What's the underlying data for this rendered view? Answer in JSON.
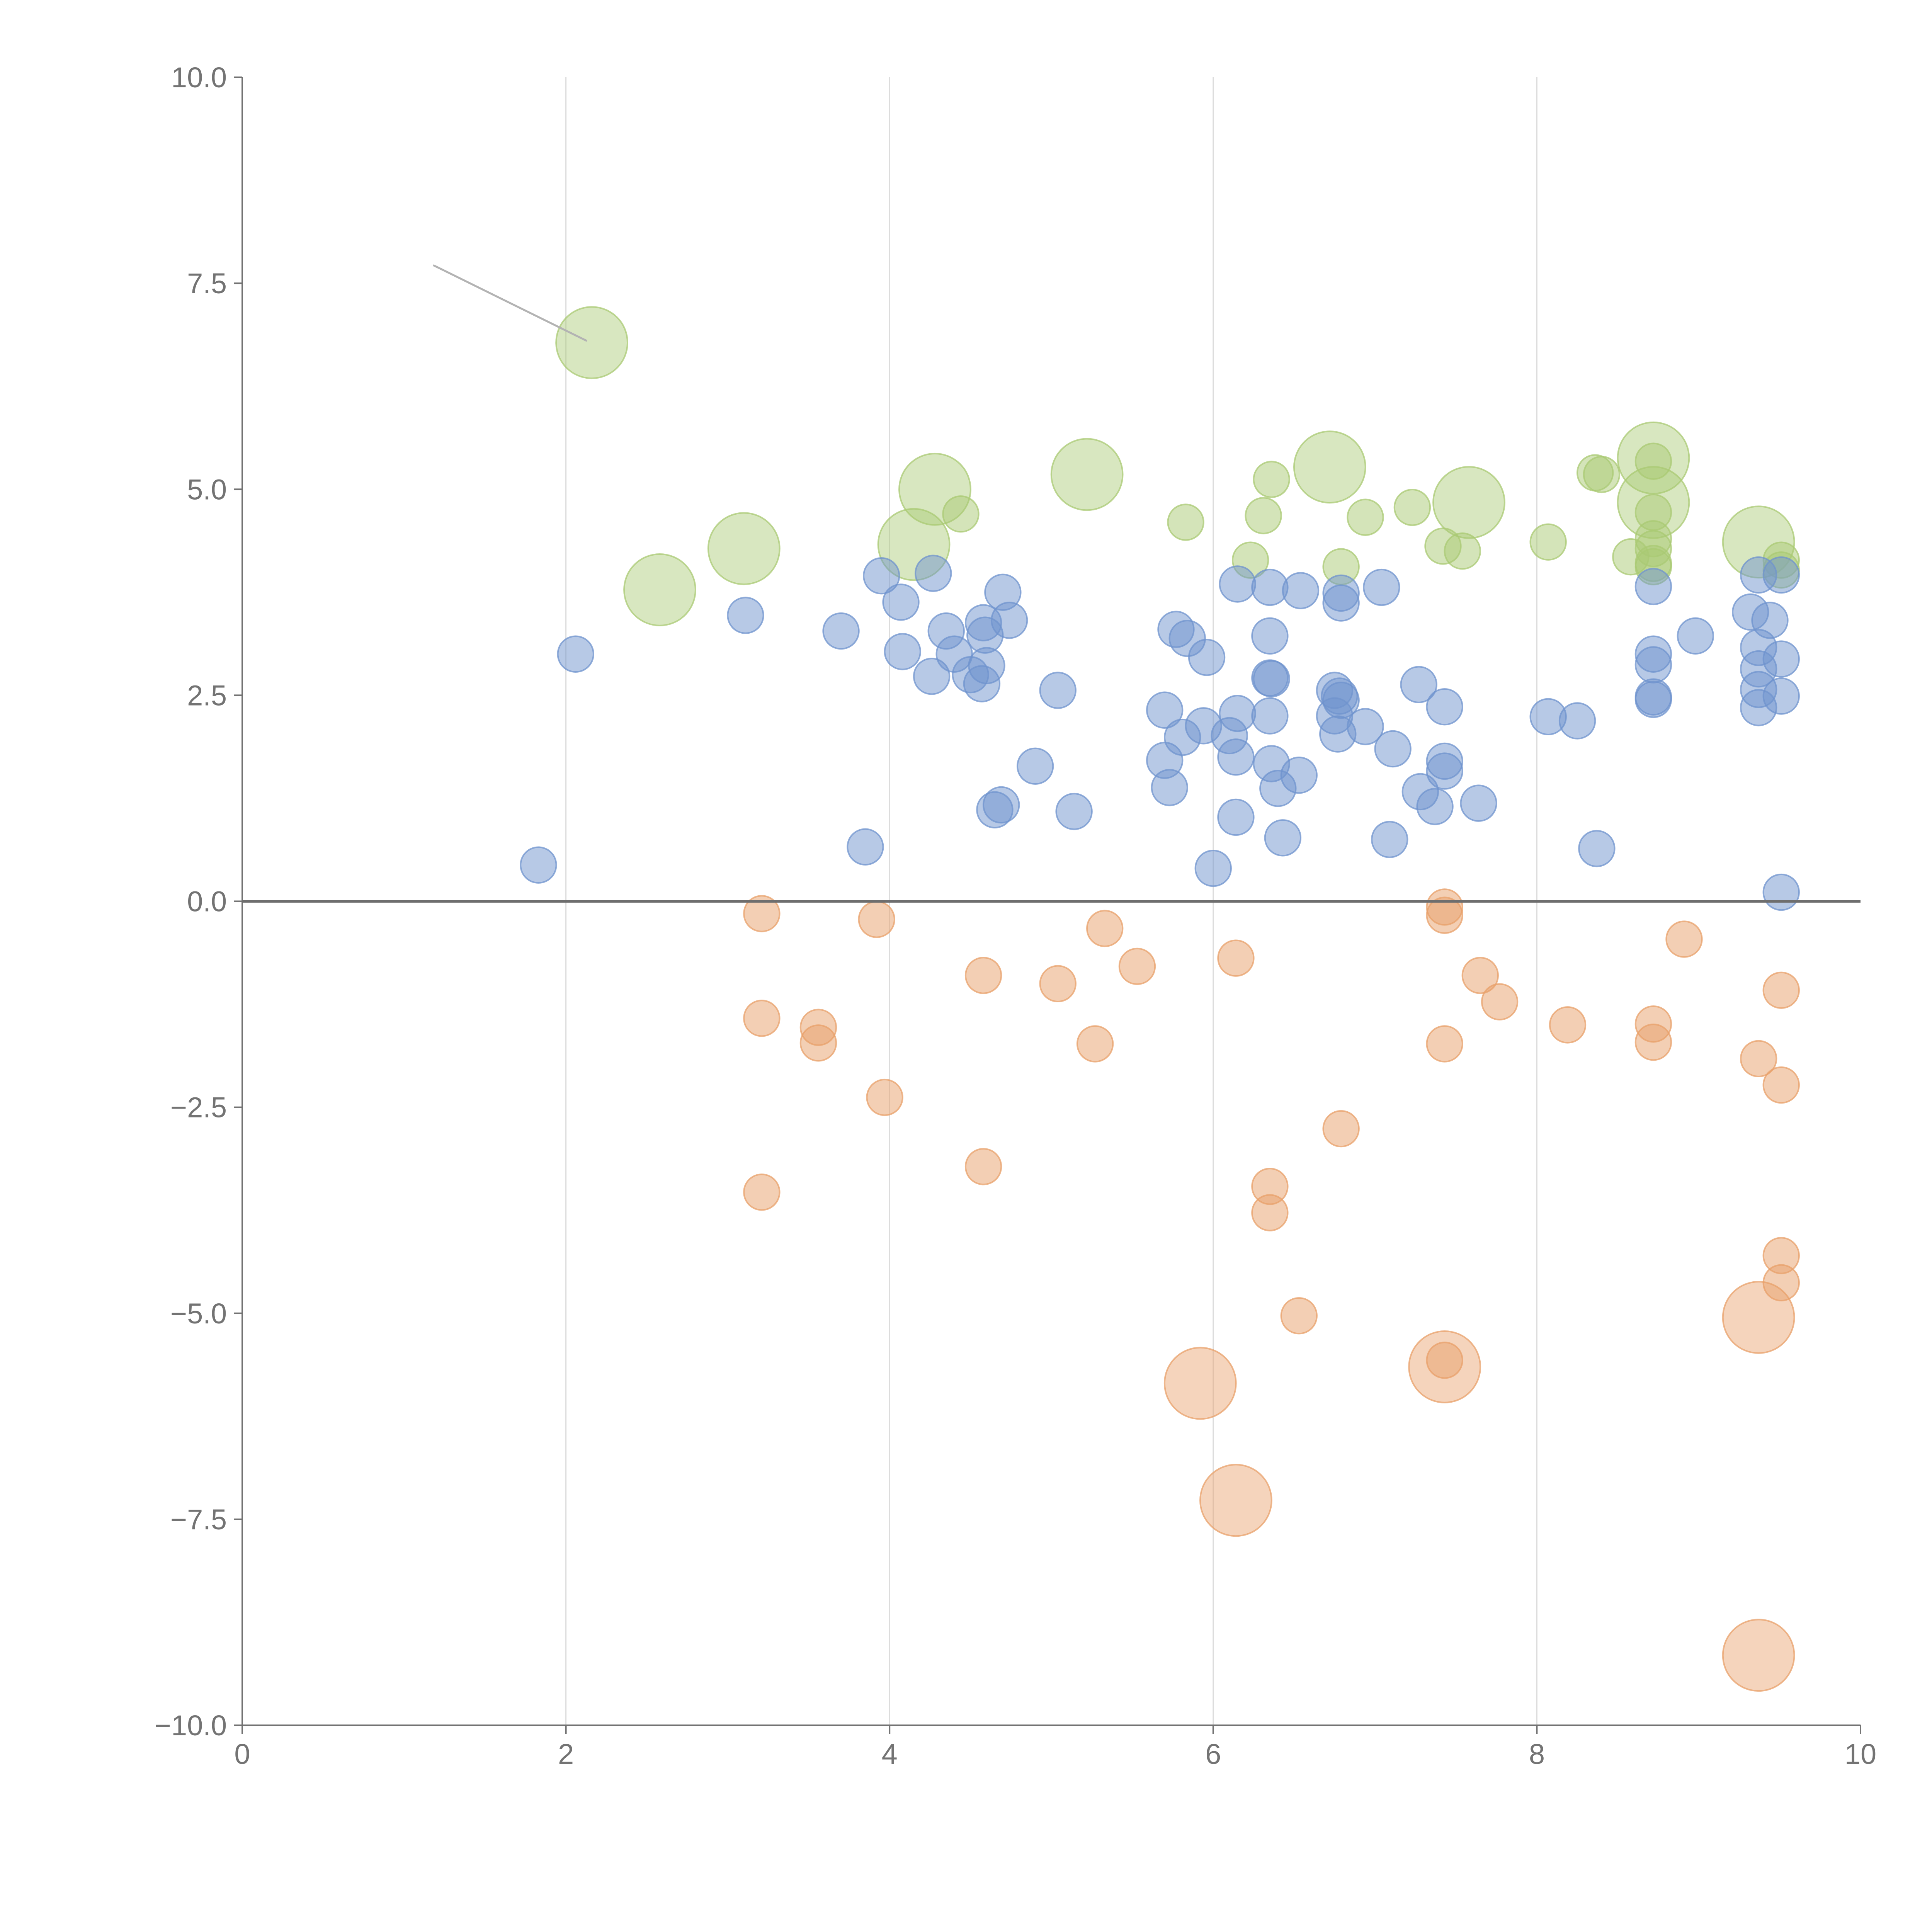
{
  "chart_data": {
    "type": "scatter",
    "subtype": "bubble",
    "title": "",
    "xlabel": "",
    "ylabel": "",
    "xlim": [
      0,
      10
    ],
    "ylim": [
      -10,
      10
    ],
    "x_ticks": [
      "0",
      "2",
      "4",
      "6",
      "8",
      "10"
    ],
    "y_ticks": [
      "−10.0",
      "−7.5",
      "−5.0",
      "−2.5",
      "0.0",
      "2.5",
      "5.0",
      "7.5",
      "10.0"
    ],
    "grid": "vertical",
    "zero_line": true,
    "legend": "none",
    "colors": {
      "green": "#a9c973",
      "blue": "#6f93cd",
      "orange": "#e8a06a",
      "axis": "#737373",
      "grid": "#dcdcdc",
      "zero": "#6e6e6e"
    },
    "leader_line": {
      "x1": 1.18,
      "y1": 7.72,
      "x2": 2.13,
      "y2": 6.8
    },
    "series": [
      {
        "color_key": "green",
        "points": [
          [
            2.16,
            6.78,
            2.2
          ],
          [
            2.58,
            3.78,
            2.2
          ],
          [
            3.1,
            4.28,
            2.2
          ],
          [
            4.15,
            4.33,
            2.2
          ],
          [
            4.28,
            5.0,
            2.2
          ],
          [
            5.22,
            5.18,
            2.2
          ],
          [
            6.72,
            5.27,
            2.2
          ],
          [
            7.58,
            4.84,
            2.2
          ],
          [
            8.72,
            5.38,
            2.2
          ],
          [
            8.72,
            4.84,
            2.2
          ],
          [
            9.37,
            4.36,
            2.2
          ],
          [
            4.44,
            4.7,
            1.1
          ],
          [
            5.83,
            4.6,
            1.1
          ],
          [
            6.36,
            5.12,
            1.1
          ],
          [
            6.31,
            4.68,
            1.1
          ],
          [
            6.23,
            4.14,
            1.1
          ],
          [
            6.79,
            4.06,
            1.1
          ],
          [
            6.94,
            4.66,
            1.1
          ],
          [
            7.23,
            4.78,
            1.1
          ],
          [
            7.42,
            4.31,
            1.1
          ],
          [
            7.54,
            4.25,
            1.1
          ],
          [
            8.07,
            4.36,
            1.1
          ],
          [
            8.36,
            5.2,
            1.1
          ],
          [
            8.4,
            5.18,
            1.1
          ],
          [
            8.58,
            4.18,
            1.1
          ],
          [
            8.72,
            5.34,
            1.1
          ],
          [
            8.72,
            4.72,
            1.1
          ],
          [
            8.72,
            4.4,
            1.1
          ],
          [
            8.72,
            4.28,
            1.1
          ],
          [
            8.72,
            4.1,
            1.1
          ],
          [
            8.72,
            4.06,
            1.1
          ],
          [
            9.51,
            4.14,
            1.1
          ],
          [
            9.51,
            4.02,
            1.1
          ]
        ]
      },
      {
        "color_key": "blue",
        "points": [
          [
            1.83,
            0.44,
            1.1
          ],
          [
            2.06,
            3.0,
            1.1
          ],
          [
            3.11,
            3.47,
            1.1
          ],
          [
            3.7,
            3.28,
            1.1
          ],
          [
            3.85,
            0.66,
            1.1
          ],
          [
            3.95,
            3.95,
            1.1
          ],
          [
            4.07,
            3.63,
            1.1
          ],
          [
            4.08,
            3.03,
            1.1
          ],
          [
            4.26,
            2.73,
            1.1
          ],
          [
            4.27,
            3.98,
            1.1
          ],
          [
            4.35,
            3.28,
            1.1
          ],
          [
            4.4,
            3.0,
            1.1
          ],
          [
            4.5,
            2.75,
            1.1
          ],
          [
            4.57,
            2.64,
            1.1
          ],
          [
            4.58,
            3.38,
            1.1
          ],
          [
            4.59,
            3.23,
            1.1
          ],
          [
            4.6,
            2.86,
            1.1
          ],
          [
            4.65,
            1.11,
            1.1
          ],
          [
            4.69,
            1.17,
            1.1
          ],
          [
            4.7,
            3.75,
            1.1
          ],
          [
            4.74,
            3.41,
            1.1
          ],
          [
            4.9,
            1.64,
            1.1
          ],
          [
            5.04,
            2.56,
            1.1
          ],
          [
            5.14,
            1.09,
            1.1
          ],
          [
            5.7,
            2.32,
            1.1
          ],
          [
            5.7,
            1.71,
            1.1
          ],
          [
            5.73,
            1.38,
            1.1
          ],
          [
            5.77,
            3.3,
            1.1
          ],
          [
            5.81,
            1.99,
            1.1
          ],
          [
            5.84,
            3.19,
            1.1
          ],
          [
            5.94,
            2.13,
            1.1
          ],
          [
            5.96,
            2.96,
            1.1
          ],
          [
            6.0,
            0.4,
            1.1
          ],
          [
            6.1,
            2.01,
            1.1
          ],
          [
            6.14,
            1.02,
            1.1
          ],
          [
            6.14,
            1.75,
            1.1
          ],
          [
            6.15,
            2.28,
            1.1
          ],
          [
            6.15,
            3.85,
            1.1
          ],
          [
            6.35,
            3.81,
            1.1
          ],
          [
            6.35,
            3.22,
            1.1
          ],
          [
            6.35,
            2.71,
            1.1
          ],
          [
            6.35,
            2.25,
            1.1
          ],
          [
            6.36,
            1.67,
            1.1
          ],
          [
            6.36,
            2.7,
            1.1
          ],
          [
            6.4,
            1.37,
            1.1
          ],
          [
            6.43,
            0.77,
            1.1
          ],
          [
            6.53,
            1.53,
            1.1
          ],
          [
            6.54,
            3.77,
            1.1
          ],
          [
            6.75,
            2.56,
            1.1
          ],
          [
            6.75,
            2.25,
            1.1
          ],
          [
            6.77,
            2.03,
            1.1
          ],
          [
            6.78,
            2.49,
            1.1
          ],
          [
            6.79,
            2.44,
            1.1
          ],
          [
            6.79,
            3.74,
            1.1
          ],
          [
            6.79,
            3.62,
            1.1
          ],
          [
            6.94,
            2.12,
            1.1
          ],
          [
            7.04,
            3.81,
            1.1
          ],
          [
            7.09,
            0.75,
            1.1
          ],
          [
            7.11,
            1.85,
            1.1
          ],
          [
            7.27,
            2.63,
            1.1
          ],
          [
            7.28,
            1.33,
            1.1
          ],
          [
            7.37,
            1.15,
            1.1
          ],
          [
            7.43,
            2.36,
            1.1
          ],
          [
            7.43,
            1.7,
            1.1
          ],
          [
            7.43,
            1.58,
            1.1
          ],
          [
            7.64,
            1.19,
            1.1
          ],
          [
            8.07,
            2.24,
            1.1
          ],
          [
            8.25,
            2.19,
            1.1
          ],
          [
            8.37,
            0.64,
            1.1
          ],
          [
            8.72,
            3.82,
            1.1
          ],
          [
            8.72,
            3.0,
            1.1
          ],
          [
            8.72,
            2.87,
            1.1
          ],
          [
            8.72,
            2.48,
            1.1
          ],
          [
            8.72,
            2.45,
            1.1
          ],
          [
            8.98,
            3.22,
            1.1
          ],
          [
            9.32,
            3.51,
            1.1
          ],
          [
            9.37,
            3.96,
            1.1
          ],
          [
            9.37,
            3.08,
            1.1
          ],
          [
            9.37,
            2.82,
            1.1
          ],
          [
            9.37,
            2.57,
            1.1
          ],
          [
            9.37,
            2.35,
            1.1
          ],
          [
            9.44,
            3.41,
            1.1
          ],
          [
            9.51,
            3.96,
            1.1
          ],
          [
            9.51,
            2.94,
            1.1
          ],
          [
            9.51,
            2.49,
            1.1
          ],
          [
            9.51,
            0.11,
            1.1
          ]
        ]
      },
      {
        "color_key": "orange",
        "points": [
          [
            3.21,
            -0.15,
            1.1
          ],
          [
            3.21,
            -1.42,
            1.1
          ],
          [
            3.21,
            -3.53,
            1.1
          ],
          [
            3.56,
            -1.53,
            1.1
          ],
          [
            3.56,
            -1.72,
            1.1
          ],
          [
            3.92,
            -0.22,
            1.1
          ],
          [
            3.97,
            -2.38,
            1.1
          ],
          [
            4.58,
            -0.9,
            1.1
          ],
          [
            4.58,
            -3.22,
            1.1
          ],
          [
            5.04,
            -1.0,
            1.1
          ],
          [
            5.27,
            -1.73,
            1.1
          ],
          [
            5.33,
            -0.33,
            1.1
          ],
          [
            5.53,
            -0.79,
            1.1
          ],
          [
            6.14,
            -0.69,
            1.1
          ],
          [
            6.35,
            -3.46,
            1.1
          ],
          [
            6.35,
            -3.78,
            1.1
          ],
          [
            6.53,
            -5.03,
            1.1
          ],
          [
            6.79,
            -2.76,
            1.1
          ],
          [
            7.43,
            -0.07,
            1.1
          ],
          [
            7.43,
            -0.17,
            1.1
          ],
          [
            7.43,
            -1.73,
            1.1
          ],
          [
            7.43,
            -5.57,
            1.1
          ],
          [
            7.65,
            -0.9,
            1.1
          ],
          [
            7.77,
            -1.22,
            1.1
          ],
          [
            8.19,
            -1.5,
            1.1
          ],
          [
            8.72,
            -1.49,
            1.1
          ],
          [
            8.72,
            -1.71,
            1.1
          ],
          [
            8.91,
            -0.46,
            1.1
          ],
          [
            9.37,
            -1.91,
            1.1
          ],
          [
            9.51,
            -1.08,
            1.1
          ],
          [
            9.51,
            -2.23,
            1.1
          ],
          [
            9.51,
            -4.3,
            1.1
          ],
          [
            9.51,
            -4.63,
            1.1
          ],
          [
            5.92,
            -5.85,
            2.2
          ],
          [
            6.14,
            -7.27,
            2.2
          ],
          [
            7.43,
            -5.65,
            2.2
          ],
          [
            9.37,
            -5.05,
            2.2
          ],
          [
            9.37,
            -9.15,
            2.2
          ]
        ]
      }
    ]
  }
}
